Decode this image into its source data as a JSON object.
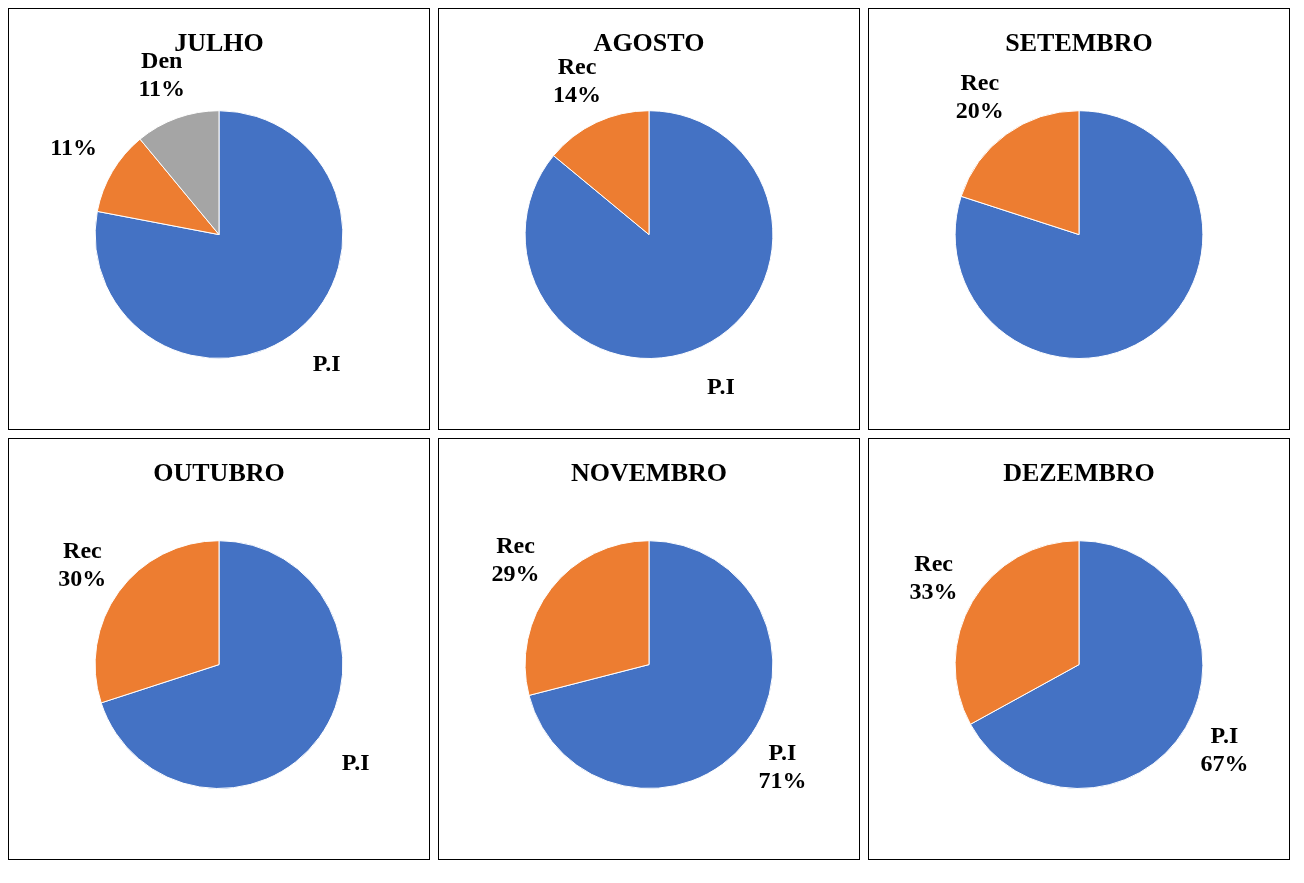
{
  "chart_data": [
    {
      "type": "pie",
      "title": "JULHO",
      "categories": [
        "P.I",
        null,
        "Den"
      ],
      "values": [
        78,
        11,
        11
      ],
      "colors": [
        "#4472c4",
        "#ed7d31",
        "#a5a5a5"
      ],
      "value_labels": [
        null,
        "11%",
        "11%"
      ]
    },
    {
      "type": "pie",
      "title": "AGOSTO",
      "categories": [
        "P.I",
        "Rec"
      ],
      "values": [
        86,
        14
      ],
      "colors": [
        "#4472c4",
        "#ed7d31"
      ],
      "value_labels": [
        null,
        "14%"
      ]
    },
    {
      "type": "pie",
      "title": "SETEMBRO",
      "categories": [
        null,
        "Rec"
      ],
      "values": [
        80,
        20
      ],
      "colors": [
        "#4472c4",
        "#ed7d31"
      ],
      "value_labels": [
        null,
        "20%"
      ]
    },
    {
      "type": "pie",
      "title": "OUTUBRO",
      "categories": [
        "P.I",
        "Rec"
      ],
      "values": [
        70,
        30
      ],
      "colors": [
        "#4472c4",
        "#ed7d31"
      ],
      "value_labels": [
        null,
        "30%"
      ]
    },
    {
      "type": "pie",
      "title": "NOVEMBRO",
      "categories": [
        "P.I",
        "Rec"
      ],
      "values": [
        71,
        29
      ],
      "colors": [
        "#4472c4",
        "#ed7d31"
      ],
      "value_labels": [
        "71%",
        "29%"
      ]
    },
    {
      "type": "pie",
      "title": "DEZEMBRO",
      "categories": [
        "P.I",
        "Rec"
      ],
      "values": [
        67,
        33
      ],
      "colors": [
        "#4472c4",
        "#ed7d31"
      ],
      "value_labels": [
        "67%",
        "33%"
      ]
    }
  ]
}
